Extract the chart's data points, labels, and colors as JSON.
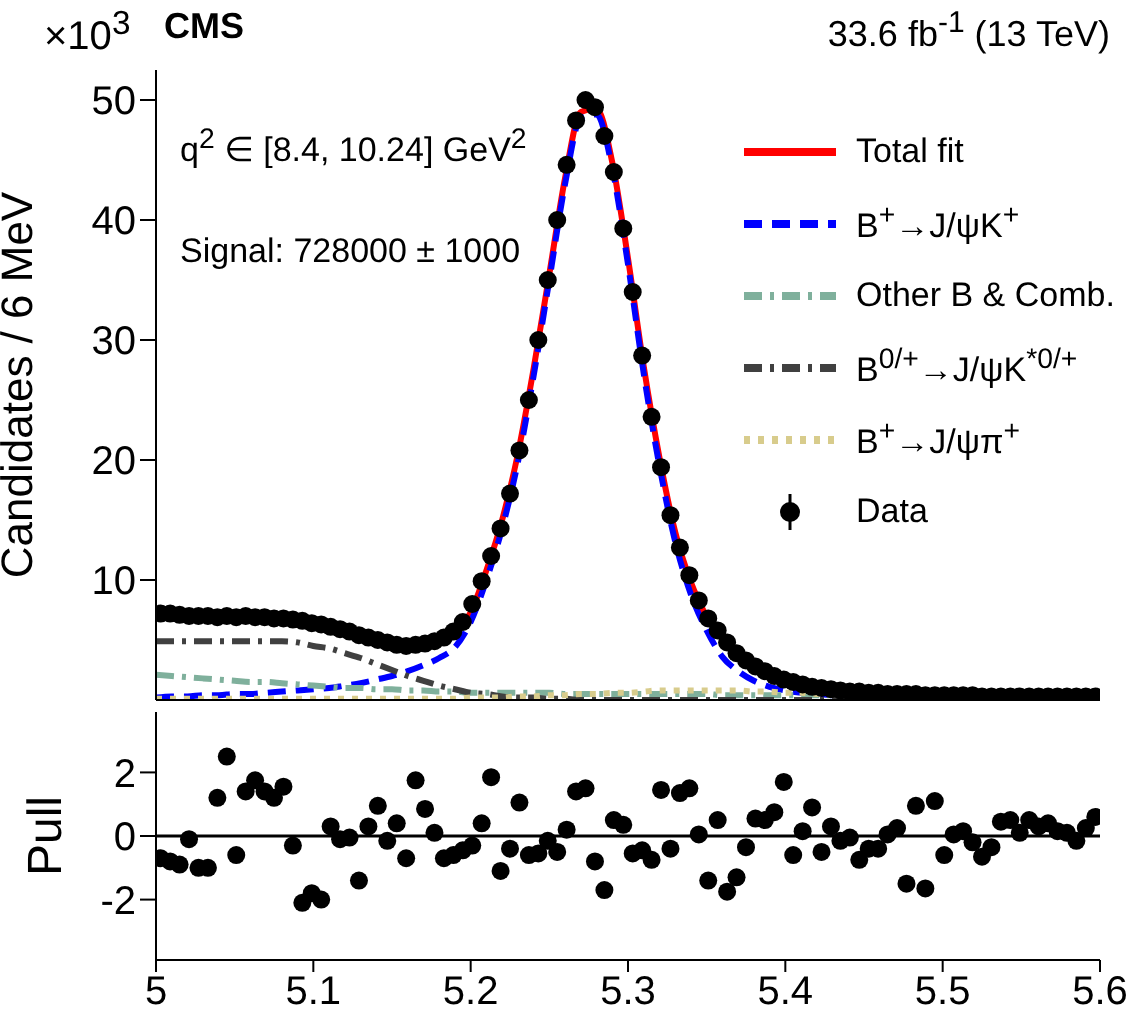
{
  "chart_data": [
    {
      "type": "line",
      "ylabel": "Candidates / 6 MeV",
      "annotations": [
        "×10$^{3}$",
        "CMS",
        "33.6 fb$^{-1}$ (13 TeV)",
        "q$^{2}$ ∈ [8.4, 10.24] GeV$^{2}$",
        "Signal: 728000 ± 1000"
      ],
      "x": [
        5.0,
        5.01,
        5.02,
        5.03,
        5.04,
        5.05,
        5.06,
        5.07,
        5.08,
        5.09,
        5.1,
        5.11,
        5.12,
        5.13,
        5.14,
        5.15,
        5.16,
        5.17,
        5.18,
        5.19,
        5.2,
        5.21,
        5.22,
        5.23,
        5.24,
        5.25,
        5.26,
        5.27,
        5.28,
        5.29,
        5.3,
        5.31,
        5.32,
        5.33,
        5.34,
        5.35,
        5.36,
        5.37,
        5.38,
        5.39,
        5.4,
        5.41,
        5.42,
        5.43,
        5.44,
        5.45,
        5.46,
        5.47,
        5.48,
        5.49,
        5.5,
        5.51,
        5.52,
        5.53,
        5.54,
        5.55,
        5.56,
        5.57,
        5.58,
        5.59,
        5.6
      ],
      "series": [
        {
          "name": "Total fit",
          "color": "#ff0000",
          "line_style": "solid",
          "values": [
            null,
            null,
            null,
            null,
            null,
            null,
            null,
            null,
            null,
            null,
            null,
            null,
            null,
            null,
            null,
            null,
            null,
            null,
            null,
            5.6,
            7.3,
            10.8,
            15.0,
            20.5,
            27.6,
            35.5,
            43.5,
            49.0,
            49.3,
            44.8,
            36.8,
            27.8,
            20.2,
            14.0,
            9.8,
            6.9,
            null,
            null,
            null,
            null,
            null,
            null,
            null,
            null,
            null,
            null,
            null,
            null,
            null,
            null,
            null,
            null,
            null,
            null,
            null,
            null,
            null,
            null,
            null,
            null,
            null
          ]
        },
        {
          "name": "B$^{+}$→J/ψK$^{+}$",
          "color": "#0000ff",
          "line_style": "dashed",
          "values": [
            0.2,
            0.3,
            0.3,
            0.4,
            0.4,
            0.5,
            0.5,
            0.6,
            0.7,
            0.8,
            0.9,
            1.0,
            1.2,
            1.4,
            1.7,
            2.0,
            2.4,
            2.9,
            3.5,
            4.4,
            6.5,
            10.0,
            14.3,
            19.8,
            27.0,
            35.0,
            43.0,
            48.5,
            48.8,
            44.3,
            36.3,
            27.2,
            19.5,
            13.2,
            8.8,
            5.8,
            3.6,
            2.4,
            1.6,
            1.1,
            0.8,
            0.6,
            0.5,
            0.4,
            0.3,
            null,
            null,
            null,
            null,
            null,
            null,
            null,
            null,
            null,
            null,
            null,
            null,
            null,
            null,
            null,
            null
          ]
        },
        {
          "name": "Other B & Comb.",
          "color": "#7fb09c",
          "line_style": "dashdot",
          "values": [
            2.1,
            2.0,
            1.9,
            1.8,
            1.7,
            1.6,
            1.5,
            1.5,
            1.4,
            1.3,
            1.2,
            1.1,
            1.0,
            1.0,
            0.9,
            0.9,
            0.8,
            0.8,
            0.7,
            0.7,
            0.6,
            0.6,
            0.6,
            0.6,
            0.6,
            0.6,
            0.5,
            0.5,
            0.5,
            0.5,
            0.5,
            0.5,
            0.5,
            0.5,
            0.5,
            0.5,
            0.4,
            0.4,
            0.4,
            0.4,
            0.4,
            0.4,
            0.4,
            0.4,
            0.4,
            0.4,
            0.4,
            0.4,
            0.4,
            0.4,
            0.4,
            0.3,
            0.3,
            0.3,
            0.3,
            0.3,
            0.3,
            0.3,
            0.3,
            0.3,
            0.3
          ]
        },
        {
          "name": "B$^{0/+}$→J/ψK$^{*0/+}$",
          "color": "#404040",
          "line_style": "dashdot",
          "values": [
            4.9,
            4.9,
            4.9,
            4.9,
            4.9,
            4.9,
            4.9,
            4.9,
            4.9,
            4.8,
            4.5,
            4.3,
            3.9,
            3.5,
            3.0,
            2.5,
            2.0,
            1.6,
            1.2,
            0.9,
            0.6,
            0.5,
            0.3,
            0.2,
            0.2,
            0.1,
            0.1,
            0,
            0,
            0,
            0,
            0,
            0,
            0,
            0,
            0,
            0,
            0,
            0,
            0,
            0,
            0,
            0,
            0,
            0,
            0,
            0,
            0,
            0,
            0,
            0,
            0,
            0,
            0,
            0,
            0,
            0,
            0,
            0,
            0,
            0
          ]
        },
        {
          "name": "B$^{+}$→J/ψπ$^{+}$",
          "color": "#d8cc8c",
          "line_style": "dotted",
          "values": [
            0.1,
            0.1,
            0.1,
            0.1,
            0.1,
            0.1,
            0.1,
            0.1,
            0.1,
            0.1,
            0.1,
            0.1,
            0.1,
            0.1,
            0.1,
            0.1,
            0.1,
            0.1,
            0.1,
            0.1,
            0.2,
            0.2,
            0.2,
            0.3,
            0.3,
            0.4,
            0.4,
            0.5,
            0.5,
            0.6,
            0.6,
            0.7,
            0.8,
            0.8,
            0.8,
            0.8,
            0.8,
            0.8,
            0.7,
            0.7,
            0.6,
            0.6,
            0.5,
            0.5,
            0.4,
            0.4,
            0.3,
            0.3,
            0.2,
            0.2,
            0.2,
            0.1,
            0.1,
            0.1,
            0.1,
            0.1,
            0.1,
            0.1,
            0.1,
            0.1,
            0.1
          ]
        },
        {
          "name": "Data",
          "type": "scatter",
          "color": "#000000",
          "marker": "circle",
          "x": [
            5.003,
            5.009,
            5.015,
            5.021,
            5.027,
            5.033,
            5.039,
            5.045,
            5.051,
            5.057,
            5.063,
            5.069,
            5.075,
            5.081,
            5.087,
            5.093,
            5.099,
            5.105,
            5.111,
            5.117,
            5.123,
            5.129,
            5.135,
            5.141,
            5.147,
            5.153,
            5.159,
            5.165,
            5.171,
            5.177,
            5.183,
            5.189,
            5.195,
            5.201,
            5.207,
            5.213,
            5.219,
            5.225,
            5.231,
            5.237,
            5.243,
            5.249,
            5.255,
            5.261,
            5.267,
            5.273,
            5.279,
            5.285,
            5.291,
            5.297,
            5.303,
            5.309,
            5.315,
            5.321,
            5.327,
            5.333,
            5.339,
            5.345,
            5.351,
            5.357,
            5.363,
            5.369,
            5.375,
            5.381,
            5.387,
            5.393,
            5.399,
            5.405,
            5.411,
            5.417,
            5.423,
            5.429,
            5.435,
            5.441,
            5.447,
            5.453,
            5.459,
            5.465,
            5.471,
            5.477,
            5.483,
            5.489,
            5.495,
            5.501,
            5.507,
            5.513,
            5.519,
            5.525,
            5.531,
            5.537,
            5.543,
            5.549,
            5.555,
            5.561,
            5.567,
            5.573,
            5.579,
            5.585,
            5.591,
            5.597
          ],
          "values": [
            7.2,
            7.2,
            7.1,
            7.0,
            7.0,
            7.0,
            6.9,
            7.0,
            6.9,
            7.0,
            6.9,
            6.9,
            6.8,
            6.8,
            6.7,
            6.6,
            6.4,
            6.3,
            6.1,
            5.9,
            5.7,
            5.4,
            5.2,
            5.0,
            4.8,
            4.6,
            4.5,
            4.6,
            4.7,
            4.9,
            5.2,
            5.7,
            6.5,
            8.0,
            9.9,
            12.0,
            14.3,
            17.2,
            20.8,
            25.0,
            30.0,
            35.0,
            40.0,
            44.6,
            48.3,
            50.0,
            49.4,
            47.0,
            44.0,
            39.3,
            34.0,
            28.7,
            23.6,
            19.4,
            15.4,
            12.7,
            10.4,
            8.3,
            6.8,
            5.8,
            4.8,
            3.9,
            3.3,
            2.8,
            2.4,
            2.0,
            1.7,
            1.5,
            1.3,
            1.1,
            1.0,
            0.9,
            0.8,
            0.7,
            0.7,
            0.6,
            0.6,
            0.5,
            0.5,
            0.5,
            0.5,
            0.4,
            0.4,
            0.4,
            0.4,
            0.4,
            0.4,
            0.3,
            0.3,
            0.3,
            0.3,
            0.3,
            0.3,
            0.3,
            0.3,
            0.3,
            0.3,
            0.3,
            0.3,
            0.3
          ]
        }
      ],
      "xlim": [
        5,
        5.6
      ],
      "xticks": [
        5,
        5.1,
        5.2,
        5.3,
        5.4,
        5.5,
        5.6
      ],
      "ylim": [
        0,
        52.5
      ],
      "yticks": [
        10,
        20,
        30,
        40,
        50
      ],
      "tick_labels": "y",
      "legend": "top right"
    },
    {
      "type": "scatter",
      "ylabel": "Pull",
      "marker": "circle",
      "x": [
        5.003,
        5.009,
        5.015,
        5.021,
        5.027,
        5.033,
        5.039,
        5.045,
        5.051,
        5.057,
        5.063,
        5.069,
        5.075,
        5.081,
        5.087,
        5.093,
        5.099,
        5.105,
        5.111,
        5.117,
        5.123,
        5.129,
        5.135,
        5.141,
        5.147,
        5.153,
        5.159,
        5.165,
        5.171,
        5.177,
        5.183,
        5.189,
        5.195,
        5.201,
        5.207,
        5.213,
        5.219,
        5.225,
        5.231,
        5.237,
        5.243,
        5.249,
        5.255,
        5.261,
        5.267,
        5.273,
        5.279,
        5.285,
        5.291,
        5.297,
        5.303,
        5.309,
        5.315,
        5.321,
        5.327,
        5.333,
        5.339,
        5.345,
        5.351,
        5.357,
        5.363,
        5.369,
        5.375,
        5.381,
        5.387,
        5.393,
        5.399,
        5.405,
        5.411,
        5.417,
        5.423,
        5.429,
        5.435,
        5.441,
        5.447,
        5.453,
        5.459,
        5.465,
        5.471,
        5.477,
        5.483,
        5.489,
        5.495,
        5.501,
        5.507,
        5.513,
        5.519,
        5.525,
        5.531,
        5.537,
        5.543,
        5.549,
        5.555,
        5.561,
        5.567,
        5.573,
        5.579,
        5.585,
        5.591,
        5.597
      ],
      "series": [
        {
          "color": "#000000",
          "values": [
            -0.7,
            -0.8,
            -0.9,
            -0.1,
            -1.0,
            -1.0,
            1.2,
            2.5,
            -0.6,
            1.4,
            1.75,
            1.4,
            1.2,
            1.55,
            -0.3,
            -2.1,
            -1.8,
            -2.0,
            0.3,
            -0.1,
            -0.05,
            -1.4,
            0.3,
            0.95,
            -0.15,
            0.4,
            -0.7,
            1.75,
            0.85,
            0.1,
            -0.7,
            -0.6,
            -0.45,
            -0.3,
            0.4,
            1.85,
            -1.1,
            -0.4,
            1.05,
            -0.6,
            -0.55,
            -0.15,
            -0.5,
            0.2,
            1.4,
            1.5,
            -0.8,
            -1.7,
            0.5,
            0.35,
            -0.55,
            -0.45,
            -0.75,
            1.45,
            -0.4,
            1.35,
            1.5,
            0.05,
            -1.4,
            0.5,
            -1.75,
            -1.3,
            -0.35,
            0.55,
            0.5,
            0.75,
            1.7,
            -0.6,
            0.15,
            0.9,
            -0.5,
            0.3,
            -0.15,
            -0.05,
            -0.75,
            -0.4,
            -0.4,
            0.05,
            0.25,
            -1.5,
            0.95,
            -1.65,
            1.1,
            -0.6,
            0.05,
            0.15,
            -0.2,
            -0.65,
            -0.35,
            0.45,
            0.5,
            0.1,
            0.5,
            0.3,
            0.4,
            0.15,
            0.1,
            -0.15,
            0.25,
            0.6
          ]
        }
      ],
      "xlim": [
        5,
        5.6
      ],
      "xticks": [
        5,
        5.1,
        5.2,
        5.3,
        5.4,
        5.5,
        5.6
      ],
      "ylim": [
        -3.9,
        3.9
      ],
      "yticks": [
        -2,
        0,
        2
      ],
      "ref_lines": [
        {
          "axis": "y",
          "value": 0,
          "color": "#000000"
        }
      ]
    }
  ]
}
